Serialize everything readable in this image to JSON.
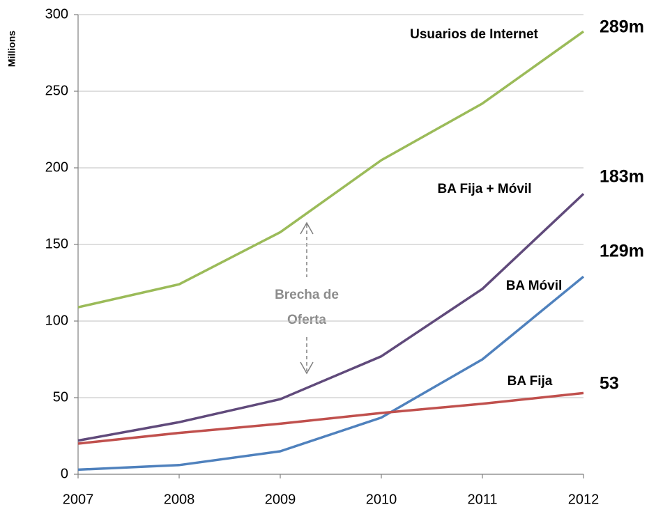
{
  "chart_data": {
    "type": "line",
    "y_label": "Millions",
    "x": [
      2007,
      2008,
      2009,
      2010,
      2011,
      2012
    ],
    "xlim": [
      2007,
      2012
    ],
    "xticks": [
      2007,
      2008,
      2009,
      2010,
      2011,
      2012
    ],
    "ylim": [
      0,
      300
    ],
    "yticks": [
      0,
      50,
      100,
      150,
      200,
      250,
      300
    ],
    "grid": true,
    "annotation": [
      "Brecha de",
      "Oferta"
    ],
    "series": [
      {
        "name": "Usuarios de Internet",
        "color": "#9bbb59",
        "values": [
          109,
          124,
          158,
          205,
          242,
          289
        ],
        "value_labels": [
          null,
          null,
          null,
          null,
          null,
          "289m"
        ]
      },
      {
        "name": "BA Fija + Móvil",
        "color": "#604a7b",
        "values": [
          22,
          34,
          49,
          77,
          121,
          183
        ],
        "value_labels": [
          null,
          null,
          null,
          null,
          null,
          "183m"
        ]
      },
      {
        "name": "BA Móvil",
        "color": "#4f81bd",
        "values": [
          3,
          6,
          15,
          37,
          75,
          129
        ],
        "value_labels": [
          null,
          null,
          null,
          null,
          null,
          "129m"
        ]
      },
      {
        "name": "BA Fija",
        "color": "#c0504d",
        "values": [
          20,
          27,
          33,
          40,
          46,
          53
        ],
        "value_labels": [
          null,
          null,
          null,
          null,
          null,
          "53"
        ]
      }
    ]
  }
}
